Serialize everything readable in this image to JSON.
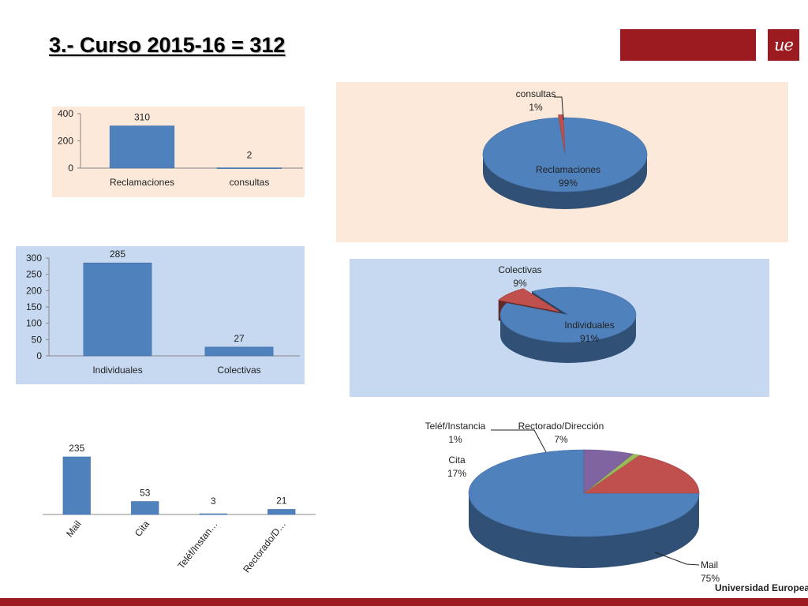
{
  "slide": {
    "title": "3.- Curso 2015-16 =  312",
    "logo_text": "ue",
    "footer_brand": "Universidad Europea",
    "brand_color": "#9B1B20"
  },
  "colors": {
    "blue": "#4F81BD",
    "red": "#C0504D",
    "green": "#9BBB59",
    "purple": "#8064A2",
    "peach_bg": "#FCE9DA",
    "lightblue_bg": "#C6D9F0"
  },
  "chart_data": [
    {
      "type": "bar",
      "categories": [
        "Reclamaciones",
        "consultas"
      ],
      "values": [
        310,
        2
      ],
      "data_labels": [
        "310",
        "2"
      ],
      "ylim": [
        0,
        400
      ],
      "yticks": [
        0,
        200,
        400
      ],
      "grid": false,
      "background": "#FCE9DA"
    },
    {
      "type": "pie",
      "style": "3d-exploded",
      "labels": [
        "Reclamaciones",
        "consultas"
      ],
      "values": [
        99,
        1
      ],
      "percent_labels": [
        "99%",
        "1%"
      ],
      "colors": [
        "#4F81BD",
        "#C0504D"
      ],
      "background": "#FCE9DA"
    },
    {
      "type": "bar",
      "categories": [
        "Individuales",
        "Colectivas"
      ],
      "values": [
        285,
        27
      ],
      "data_labels": [
        "285",
        "27"
      ],
      "ylim": [
        0,
        300
      ],
      "yticks": [
        0,
        50,
        100,
        150,
        200,
        250,
        300
      ],
      "grid": false,
      "background": "#C6D9F0"
    },
    {
      "type": "pie",
      "style": "3d-exploded",
      "labels": [
        "Individuales",
        "Colectivas"
      ],
      "values": [
        91,
        9
      ],
      "percent_labels": [
        "91%",
        "9%"
      ],
      "colors": [
        "#4F81BD",
        "#C0504D"
      ],
      "background": "#C6D9F0"
    },
    {
      "type": "bar",
      "categories": [
        "Mail",
        "Cita",
        "Teléf/Instan…",
        "Rectorado/D…"
      ],
      "values": [
        235,
        53,
        3,
        21
      ],
      "data_labels": [
        "235",
        "53",
        "3",
        "21"
      ],
      "ylim": [
        0,
        235
      ],
      "axis_visible": false,
      "background": "#FFFFFF"
    },
    {
      "type": "pie",
      "style": "3d",
      "labels": [
        "Mail",
        "Cita",
        "Teléf/Instancia",
        "Rectorado/Dirección"
      ],
      "values": [
        75,
        17,
        1,
        7
      ],
      "percent_labels": [
        "75%",
        "17%",
        "1%",
        "7%"
      ],
      "colors": [
        "#4F81BD",
        "#C0504D",
        "#9BBB59",
        "#8064A2"
      ],
      "background": "#FFFFFF"
    }
  ]
}
